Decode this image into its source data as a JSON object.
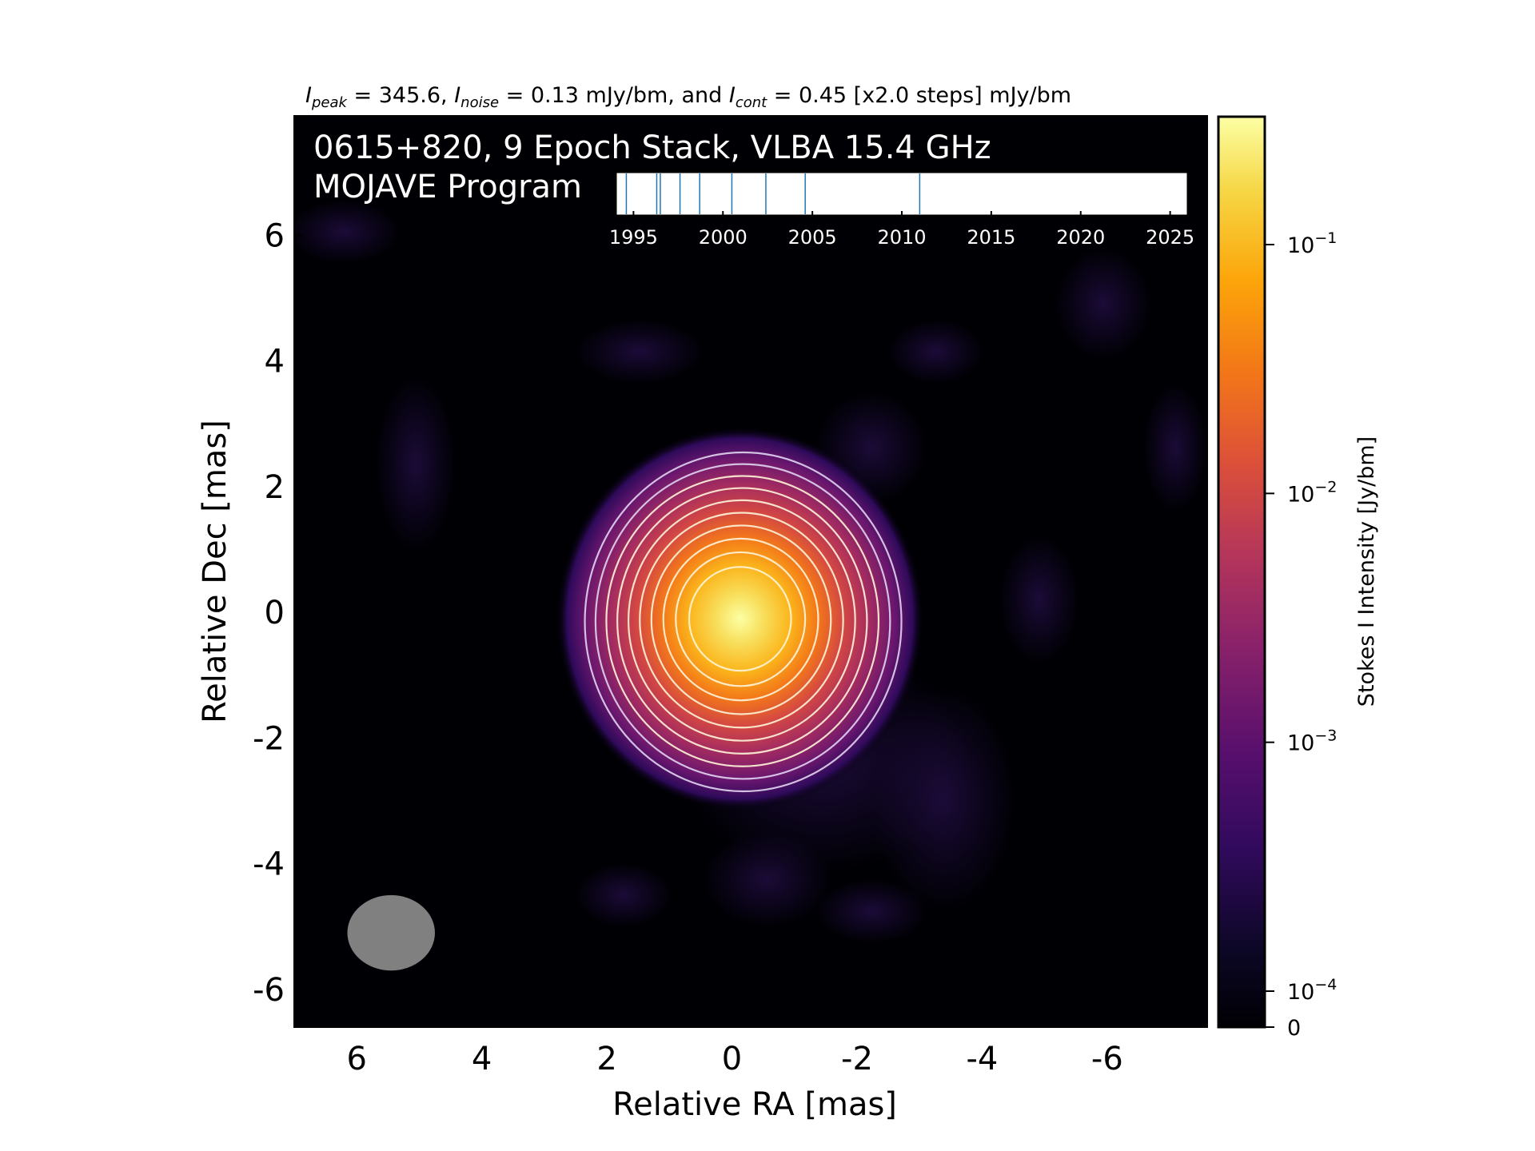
{
  "chart_data": {
    "type": "heatmap",
    "title_parts": {
      "peak_sym": "I",
      "peak_sub": "peak",
      "peak_val": " = 345.6, ",
      "noise_sym": "I",
      "noise_sub": "noise",
      "noise_val": " = 0.13 mJy/bm, and ",
      "cont_sym": "I",
      "cont_sub": "cont",
      "cont_val": " = 0.45 [x2.0 steps] mJy/bm"
    },
    "annotation": {
      "line1": "0615+820, 9 Epoch Stack, VLBA 15.4 GHz",
      "line2": "MOJAVE Program"
    },
    "xlabel": "Relative RA [mas]",
    "ylabel": "Relative Dec [mas]",
    "xlim": [
      7.0,
      -7.6
    ],
    "ylim": [
      -6.6,
      7.9
    ],
    "x_ticks": [
      6,
      4,
      2,
      0,
      -2,
      -4,
      -6
    ],
    "y_ticks": [
      6,
      4,
      2,
      0,
      -2,
      -4,
      -6
    ],
    "source": {
      "x": 0.0,
      "y": -0.1,
      "peak_jy": 0.3456
    },
    "contour_levels_mjy": [
      0.45,
      0.9,
      1.8,
      3.6,
      7.2,
      14.4,
      28.8,
      57.6,
      115.2,
      230.4
    ],
    "beam": {
      "x": 5.45,
      "y": -5.1,
      "major": 1.5,
      "minor": 1.4,
      "color": "#808080"
    },
    "colorbar": {
      "label": "Stokes I Intensity [Jy/bm]",
      "scale": "log",
      "ticks": [
        {
          "value": 0.1,
          "base": "10",
          "exp": "−1"
        },
        {
          "value": 0.01,
          "base": "10",
          "exp": "−2"
        },
        {
          "value": 0.001,
          "base": "10",
          "exp": "−3"
        },
        {
          "value": 0.0001,
          "base": "10",
          "exp": "−4"
        },
        {
          "value": 0,
          "base": "0",
          "exp": ""
        }
      ],
      "colormap": "inferno"
    },
    "epoch_inset": {
      "xlim": [
        1994.0,
        2026.0
      ],
      "ticks": [
        "1995",
        "2000",
        "2005",
        "2010",
        "2015",
        "2020",
        "2025"
      ],
      "tick_values": [
        1995,
        2000,
        2005,
        2010,
        2015,
        2020,
        2025
      ],
      "epochs": [
        1994.6,
        1996.3,
        1996.5,
        1997.6,
        1998.7,
        2000.5,
        2002.4,
        2004.6,
        2011.0
      ],
      "line_color": "#1f77b4"
    }
  }
}
